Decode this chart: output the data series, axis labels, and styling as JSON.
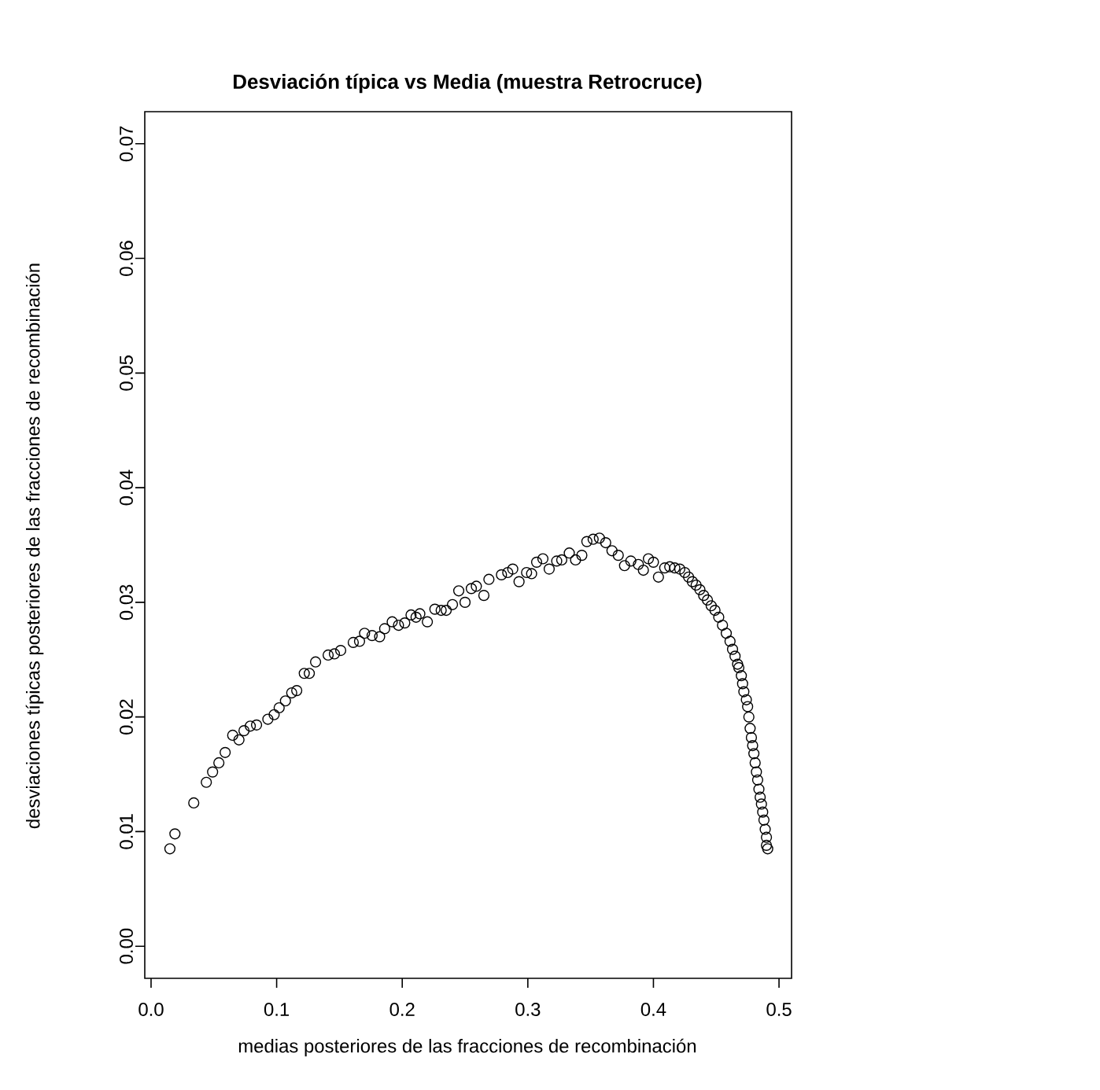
{
  "chart_data": {
    "type": "scatter",
    "title": "Desviación típica vs Media (muestra Retrocruce)",
    "xlabel": "medias posteriores de las fracciones de recombinación",
    "ylabel": "desviaciones típicas posteriores de las fracciones de recombinación",
    "xlim": [
      -0.005,
      0.51
    ],
    "ylim": [
      -0.0028,
      0.0728
    ],
    "xticks": [
      {
        "value": 0,
        "label": "0.0"
      },
      0.1,
      0.2,
      0.3,
      0.4,
      0.5
    ],
    "yticks": [
      {
        "value": 0,
        "label": "0.00"
      },
      {
        "value": 0.01,
        "label": "0.01"
      },
      {
        "value": 0.02,
        "label": "0.02"
      },
      {
        "value": 0.03,
        "label": "0.03"
      },
      {
        "value": 0.04,
        "label": "0.04"
      },
      {
        "value": 0.05,
        "label": "0.05"
      },
      {
        "value": 0.06,
        "label": "0.06"
      },
      {
        "value": 0.07,
        "label": "0.07"
      }
    ],
    "marker": "circle",
    "series": [
      {
        "color": "#000000",
        "x": [
          0.015,
          0.019,
          0.034,
          0.044,
          0.049,
          0.054,
          0.059,
          0.065,
          0.07,
          0.074,
          0.079,
          0.084,
          0.093,
          0.098,
          0.102,
          0.107,
          0.112,
          0.116,
          0.122,
          0.126,
          0.131,
          0.141,
          0.146,
          0.151,
          0.161,
          0.166,
          0.17,
          0.176,
          0.182,
          0.186,
          0.192,
          0.197,
          0.202,
          0.207,
          0.211,
          0.214,
          0.22,
          0.226,
          0.231,
          0.235,
          0.24,
          0.245,
          0.25,
          0.255,
          0.259,
          0.265,
          0.269,
          0.279,
          0.284,
          0.288,
          0.293,
          0.299,
          0.303,
          0.307,
          0.312,
          0.317,
          0.323,
          0.327,
          0.333,
          0.338,
          0.343,
          0.347,
          0.352,
          0.357,
          0.362,
          0.367,
          0.372,
          0.377,
          0.382,
          0.388,
          0.392,
          0.396,
          0.4,
          0.404,
          0.409,
          0.413,
          0.417,
          0.421,
          0.425,
          0.428,
          0.431,
          0.434,
          0.437,
          0.44,
          0.443,
          0.446,
          0.449,
          0.452,
          0.455,
          0.458,
          0.461,
          0.463,
          0.465,
          0.467,
          0.468,
          0.47,
          0.471,
          0.472,
          0.474,
          0.475,
          0.476,
          0.477,
          0.478,
          0.479,
          0.48,
          0.481,
          0.482,
          0.483,
          0.484,
          0.485,
          0.486,
          0.487,
          0.488,
          0.489,
          0.49,
          0.49,
          0.491
        ],
        "values": [
          0.0085,
          0.0098,
          0.0125,
          0.0143,
          0.0152,
          0.016,
          0.0169,
          0.0184,
          0.018,
          0.0188,
          0.0192,
          0.0193,
          0.0198,
          0.0202,
          0.0208,
          0.0214,
          0.0221,
          0.0223,
          0.0238,
          0.0238,
          0.0248,
          0.0254,
          0.0255,
          0.0258,
          0.0265,
          0.0266,
          0.0273,
          0.0271,
          0.027,
          0.0277,
          0.0283,
          0.028,
          0.0282,
          0.0289,
          0.0287,
          0.029,
          0.0283,
          0.0294,
          0.0293,
          0.0293,
          0.0298,
          0.031,
          0.03,
          0.0312,
          0.0314,
          0.0306,
          0.032,
          0.0324,
          0.0326,
          0.0329,
          0.0318,
          0.0326,
          0.0325,
          0.0335,
          0.0338,
          0.0329,
          0.0336,
          0.0337,
          0.0343,
          0.0337,
          0.0341,
          0.0353,
          0.0355,
          0.0356,
          0.0352,
          0.0345,
          0.0341,
          0.0332,
          0.0336,
          0.0333,
          0.0328,
          0.0338,
          0.0335,
          0.0322,
          0.033,
          0.0331,
          0.033,
          0.0329,
          0.0326,
          0.0322,
          0.0318,
          0.0315,
          0.0311,
          0.0306,
          0.0302,
          0.0297,
          0.0293,
          0.0287,
          0.028,
          0.0273,
          0.0266,
          0.0259,
          0.0253,
          0.0246,
          0.0243,
          0.0236,
          0.0229,
          0.0222,
          0.0215,
          0.0209,
          0.02,
          0.019,
          0.0182,
          0.0175,
          0.0168,
          0.016,
          0.0152,
          0.0145,
          0.0137,
          0.013,
          0.0124,
          0.0117,
          0.011,
          0.0102,
          0.0095,
          0.0088,
          0.0085
        ]
      }
    ]
  }
}
